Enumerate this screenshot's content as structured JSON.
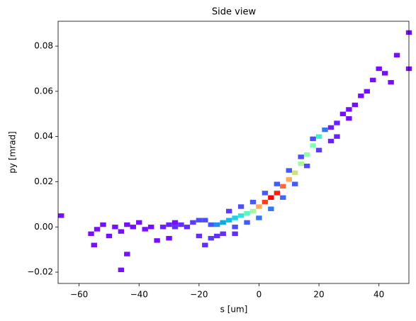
{
  "chart_data": {
    "type": "hist2d",
    "title": "Side view",
    "xlabel": "s [um]",
    "ylabel": "py [mrad]",
    "cmap": "rainbow",
    "x": [
      -66,
      -56,
      -54,
      -52,
      -50,
      -48,
      -46,
      -44,
      -42,
      -40,
      -38,
      -36,
      -44,
      -46,
      -55,
      -34,
      -30,
      -28,
      -32,
      -30,
      -28,
      -26,
      -24,
      -22,
      -20,
      -18,
      -20,
      -18,
      -16,
      -16,
      -14,
      -12,
      -10,
      -8,
      -6,
      -4,
      -2,
      0,
      2,
      4,
      6,
      8,
      10,
      12,
      14,
      16,
      18,
      20,
      22,
      -10,
      -6,
      -2,
      2,
      6,
      10,
      14,
      18,
      -8,
      -4,
      0,
      4,
      8,
      12,
      16,
      20,
      -12,
      -8,
      -14,
      24,
      26,
      28,
      30,
      32,
      34,
      36,
      38,
      40,
      42,
      44,
      46,
      50,
      50,
      26,
      30,
      24
    ],
    "y": [
      0.005,
      -0.003,
      -0.001,
      0.001,
      -0.004,
      0.0,
      -0.002,
      0.001,
      0.0,
      0.002,
      -0.001,
      0.0,
      -0.012,
      -0.019,
      -0.008,
      -0.006,
      -0.005,
      0.002,
      0.0,
      0.001,
      0.0,
      0.001,
      0.0,
      0.002,
      0.003,
      0.003,
      -0.004,
      -0.008,
      -0.005,
      0.001,
      0.001,
      0.002,
      0.003,
      0.004,
      0.005,
      0.006,
      0.007,
      0.009,
      0.011,
      0.013,
      0.015,
      0.018,
      0.021,
      0.024,
      0.028,
      0.032,
      0.036,
      0.04,
      0.043,
      0.007,
      0.009,
      0.011,
      0.015,
      0.019,
      0.025,
      0.031,
      0.039,
      0.0,
      0.002,
      0.004,
      0.008,
      0.013,
      0.019,
      0.027,
      0.034,
      -0.003,
      -0.003,
      -0.004,
      0.044,
      0.046,
      0.05,
      0.052,
      0.054,
      0.058,
      0.06,
      0.065,
      0.07,
      0.068,
      0.064,
      0.076,
      0.086,
      0.07,
      0.04,
      0.048,
      0.038
    ],
    "counts": [
      1,
      1,
      1,
      1,
      1,
      1,
      1,
      1,
      1,
      1,
      1,
      1,
      1,
      1,
      1,
      1,
      1,
      1,
      2,
      2,
      3,
      3,
      3,
      4,
      5,
      5,
      3,
      3,
      4,
      6,
      10,
      12,
      14,
      16,
      18,
      22,
      30,
      40,
      48,
      52,
      50,
      45,
      40,
      34,
      30,
      28,
      26,
      20,
      8,
      4,
      5,
      6,
      6,
      6,
      6,
      5,
      5,
      5,
      6,
      8,
      8,
      7,
      6,
      5,
      4,
      3,
      3,
      3,
      2,
      2,
      1,
      1,
      1,
      1,
      1,
      1,
      1,
      1,
      1,
      1,
      1,
      1,
      2,
      1,
      2
    ],
    "xlim": [
      -67,
      50
    ],
    "ylim": [
      -0.025,
      0.091
    ],
    "xticks": [
      {
        "value": -60,
        "label": "−60"
      },
      {
        "value": -40,
        "label": "−40"
      },
      {
        "value": -20,
        "label": "−20"
      },
      0,
      20,
      40
    ],
    "yticks": [
      {
        "value": -0.02,
        "label": "−0.02"
      },
      {
        "value": 0,
        "label": "0.00"
      },
      {
        "value": 0.02,
        "label": "0.02"
      },
      {
        "value": 0.04,
        "label": "0.04"
      },
      {
        "value": 0.06,
        "label": "0.06"
      },
      {
        "value": 0.08,
        "label": "0.08"
      }
    ]
  }
}
